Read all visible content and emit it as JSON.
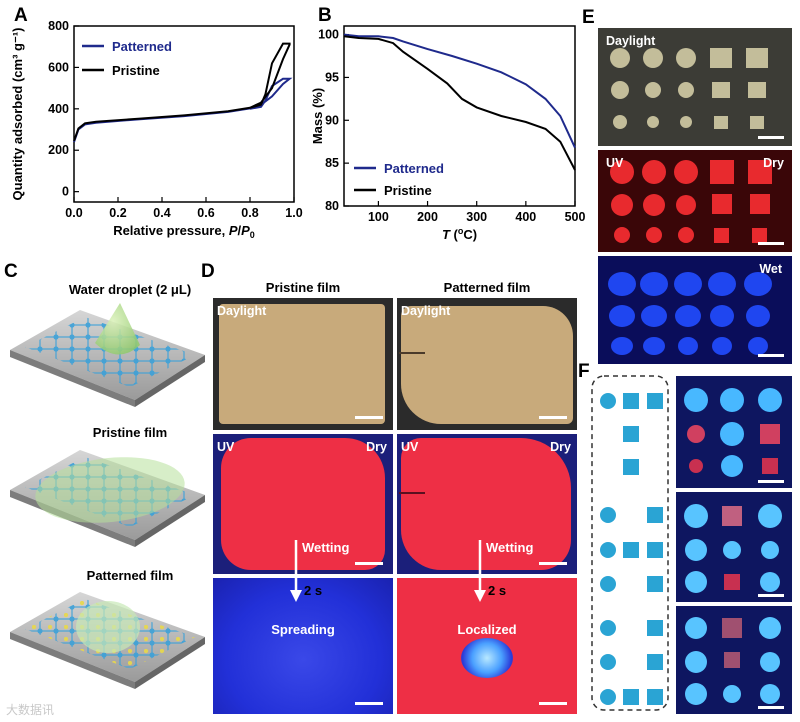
{
  "panels": {
    "A": "A",
    "B": "B",
    "C": "C",
    "D": "D",
    "E": "E",
    "F": "F"
  },
  "chart_data": [
    {
      "panel": "A",
      "type": "line",
      "xlabel": "Relative pressure, P/P0",
      "ylabel": "Quantity adsorbed (cm³ g⁻¹)",
      "xlim": [
        0.0,
        1.0
      ],
      "ylim": [
        -50,
        800
      ],
      "x_ticks": [
        "0.0",
        "0.2",
        "0.4",
        "0.6",
        "0.8",
        "1.0"
      ],
      "y_ticks": [
        "0",
        "200",
        "400",
        "600",
        "800"
      ],
      "legend": "top-left",
      "series": [
        {
          "name": "Patterned",
          "color": "#1f2a8c",
          "adsorption": [
            [
              0.0,
              240
            ],
            [
              0.02,
              300
            ],
            [
              0.05,
              325
            ],
            [
              0.1,
              333
            ],
            [
              0.3,
              350
            ],
            [
              0.5,
              365
            ],
            [
              0.7,
              385
            ],
            [
              0.8,
              402
            ],
            [
              0.85,
              420
            ],
            [
              0.9,
              460
            ],
            [
              0.95,
              520
            ],
            [
              0.98,
              545
            ]
          ],
          "desorption": [
            [
              0.98,
              545
            ],
            [
              0.95,
              545
            ],
            [
              0.9,
              510
            ],
            [
              0.87,
              440
            ],
            [
              0.85,
              410
            ],
            [
              0.8,
              400
            ]
          ]
        },
        {
          "name": "Pristine",
          "color": "#000000",
          "adsorption": [
            [
              0.0,
              245
            ],
            [
              0.02,
              305
            ],
            [
              0.05,
              330
            ],
            [
              0.1,
              338
            ],
            [
              0.3,
              353
            ],
            [
              0.5,
              368
            ],
            [
              0.7,
              388
            ],
            [
              0.8,
              405
            ],
            [
              0.85,
              430
            ],
            [
              0.9,
              500
            ],
            [
              0.95,
              640
            ],
            [
              0.98,
              710
            ]
          ],
          "desorption": [
            [
              0.98,
              715
            ],
            [
              0.95,
              715
            ],
            [
              0.9,
              620
            ],
            [
              0.87,
              470
            ],
            [
              0.85,
              420
            ],
            [
              0.8,
              405
            ]
          ]
        }
      ]
    },
    {
      "panel": "B",
      "type": "line",
      "xlabel": "T (°C)",
      "ylabel": "Mass (%)",
      "xlim": [
        30,
        500
      ],
      "ylim": [
        80,
        101
      ],
      "x_ticks": [
        "100",
        "200",
        "300",
        "400",
        "500"
      ],
      "y_ticks": [
        "80",
        "85",
        "90",
        "95",
        "100"
      ],
      "legend": "bottom-left",
      "series": [
        {
          "name": "Patterned",
          "color": "#1f2a8c",
          "x": [
            30,
            60,
            100,
            130,
            150,
            200,
            250,
            300,
            350,
            400,
            440,
            470,
            500
          ],
          "y": [
            100,
            99.8,
            99.8,
            99.6,
            99.2,
            98.3,
            97.5,
            96.6,
            95.6,
            94.2,
            92.5,
            90.5,
            86.8
          ]
        },
        {
          "name": "Pristine",
          "color": "#000000",
          "x": [
            30,
            60,
            100,
            130,
            150,
            200,
            240,
            270,
            300,
            350,
            400,
            440,
            470,
            500
          ],
          "y": [
            99.8,
            99.6,
            99.5,
            99.0,
            98.0,
            96.0,
            94.3,
            92.5,
            91.5,
            90.5,
            89.8,
            89.0,
            87.5,
            84.2
          ]
        }
      ]
    }
  ],
  "panelC": {
    "title1": "Water droplet (2 μL)",
    "title2": "Pristine film",
    "title3": "Patterned film"
  },
  "panelD": {
    "col1": "Pristine film",
    "col2": "Patterned film",
    "daylight": "Daylight",
    "uv": "UV",
    "dry": "Dry",
    "wetting": "Wetting",
    "time": "2 s",
    "spreading": "Spreading",
    "localized": "Localized"
  },
  "panelE": {
    "daylight": "Daylight",
    "uv": "UV",
    "dry": "Dry",
    "wet": "Wet"
  },
  "watermark": "大数据讯",
  "colors": {
    "patterned": "#1f2a8c",
    "pristine": "#000000",
    "uv_red": "#e8213c",
    "uv_blue": "#1637e8",
    "film_tan": "#c7a97a",
    "pattern_blue": "#2aa4d4"
  }
}
